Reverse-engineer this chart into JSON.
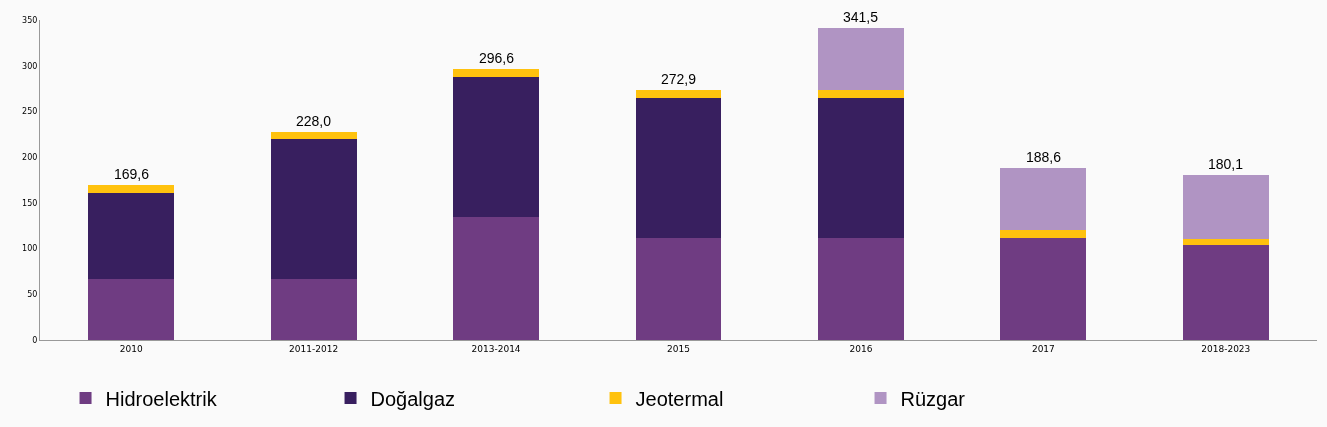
{
  "chart_data": {
    "type": "bar",
    "stacked": true,
    "categories": [
      "2010",
      "2011-2012",
      "2013-2014",
      "2015",
      "2016",
      "2017",
      "2018-2023"
    ],
    "series": [
      {
        "name": "Hidroelektrik",
        "color": "#6f3c82",
        "values": [
          67,
          67,
          135,
          112,
          112,
          112,
          104
        ]
      },
      {
        "name": "Doğalgaz",
        "color": "#381f5f",
        "values": [
          94,
          153,
          153,
          153,
          153,
          0,
          0
        ]
      },
      {
        "name": "Jeotermal",
        "color": "#ffc20e",
        "values": [
          8.6,
          8,
          8.6,
          7.9,
          8,
          8,
          7
        ]
      },
      {
        "name": "Rüzgar",
        "color": "#b094c3",
        "values": [
          0,
          0,
          0,
          0,
          68.5,
          68.6,
          69.1
        ]
      }
    ],
    "totals": [
      "169,6",
      "228,0",
      "296,6",
      "272,9",
      "341,5",
      "188,6",
      "180,1"
    ],
    "ylim": [
      0,
      350
    ],
    "yticks": [
      0,
      50,
      100,
      150,
      200,
      250,
      300,
      350
    ],
    "legend": "bottom left"
  }
}
